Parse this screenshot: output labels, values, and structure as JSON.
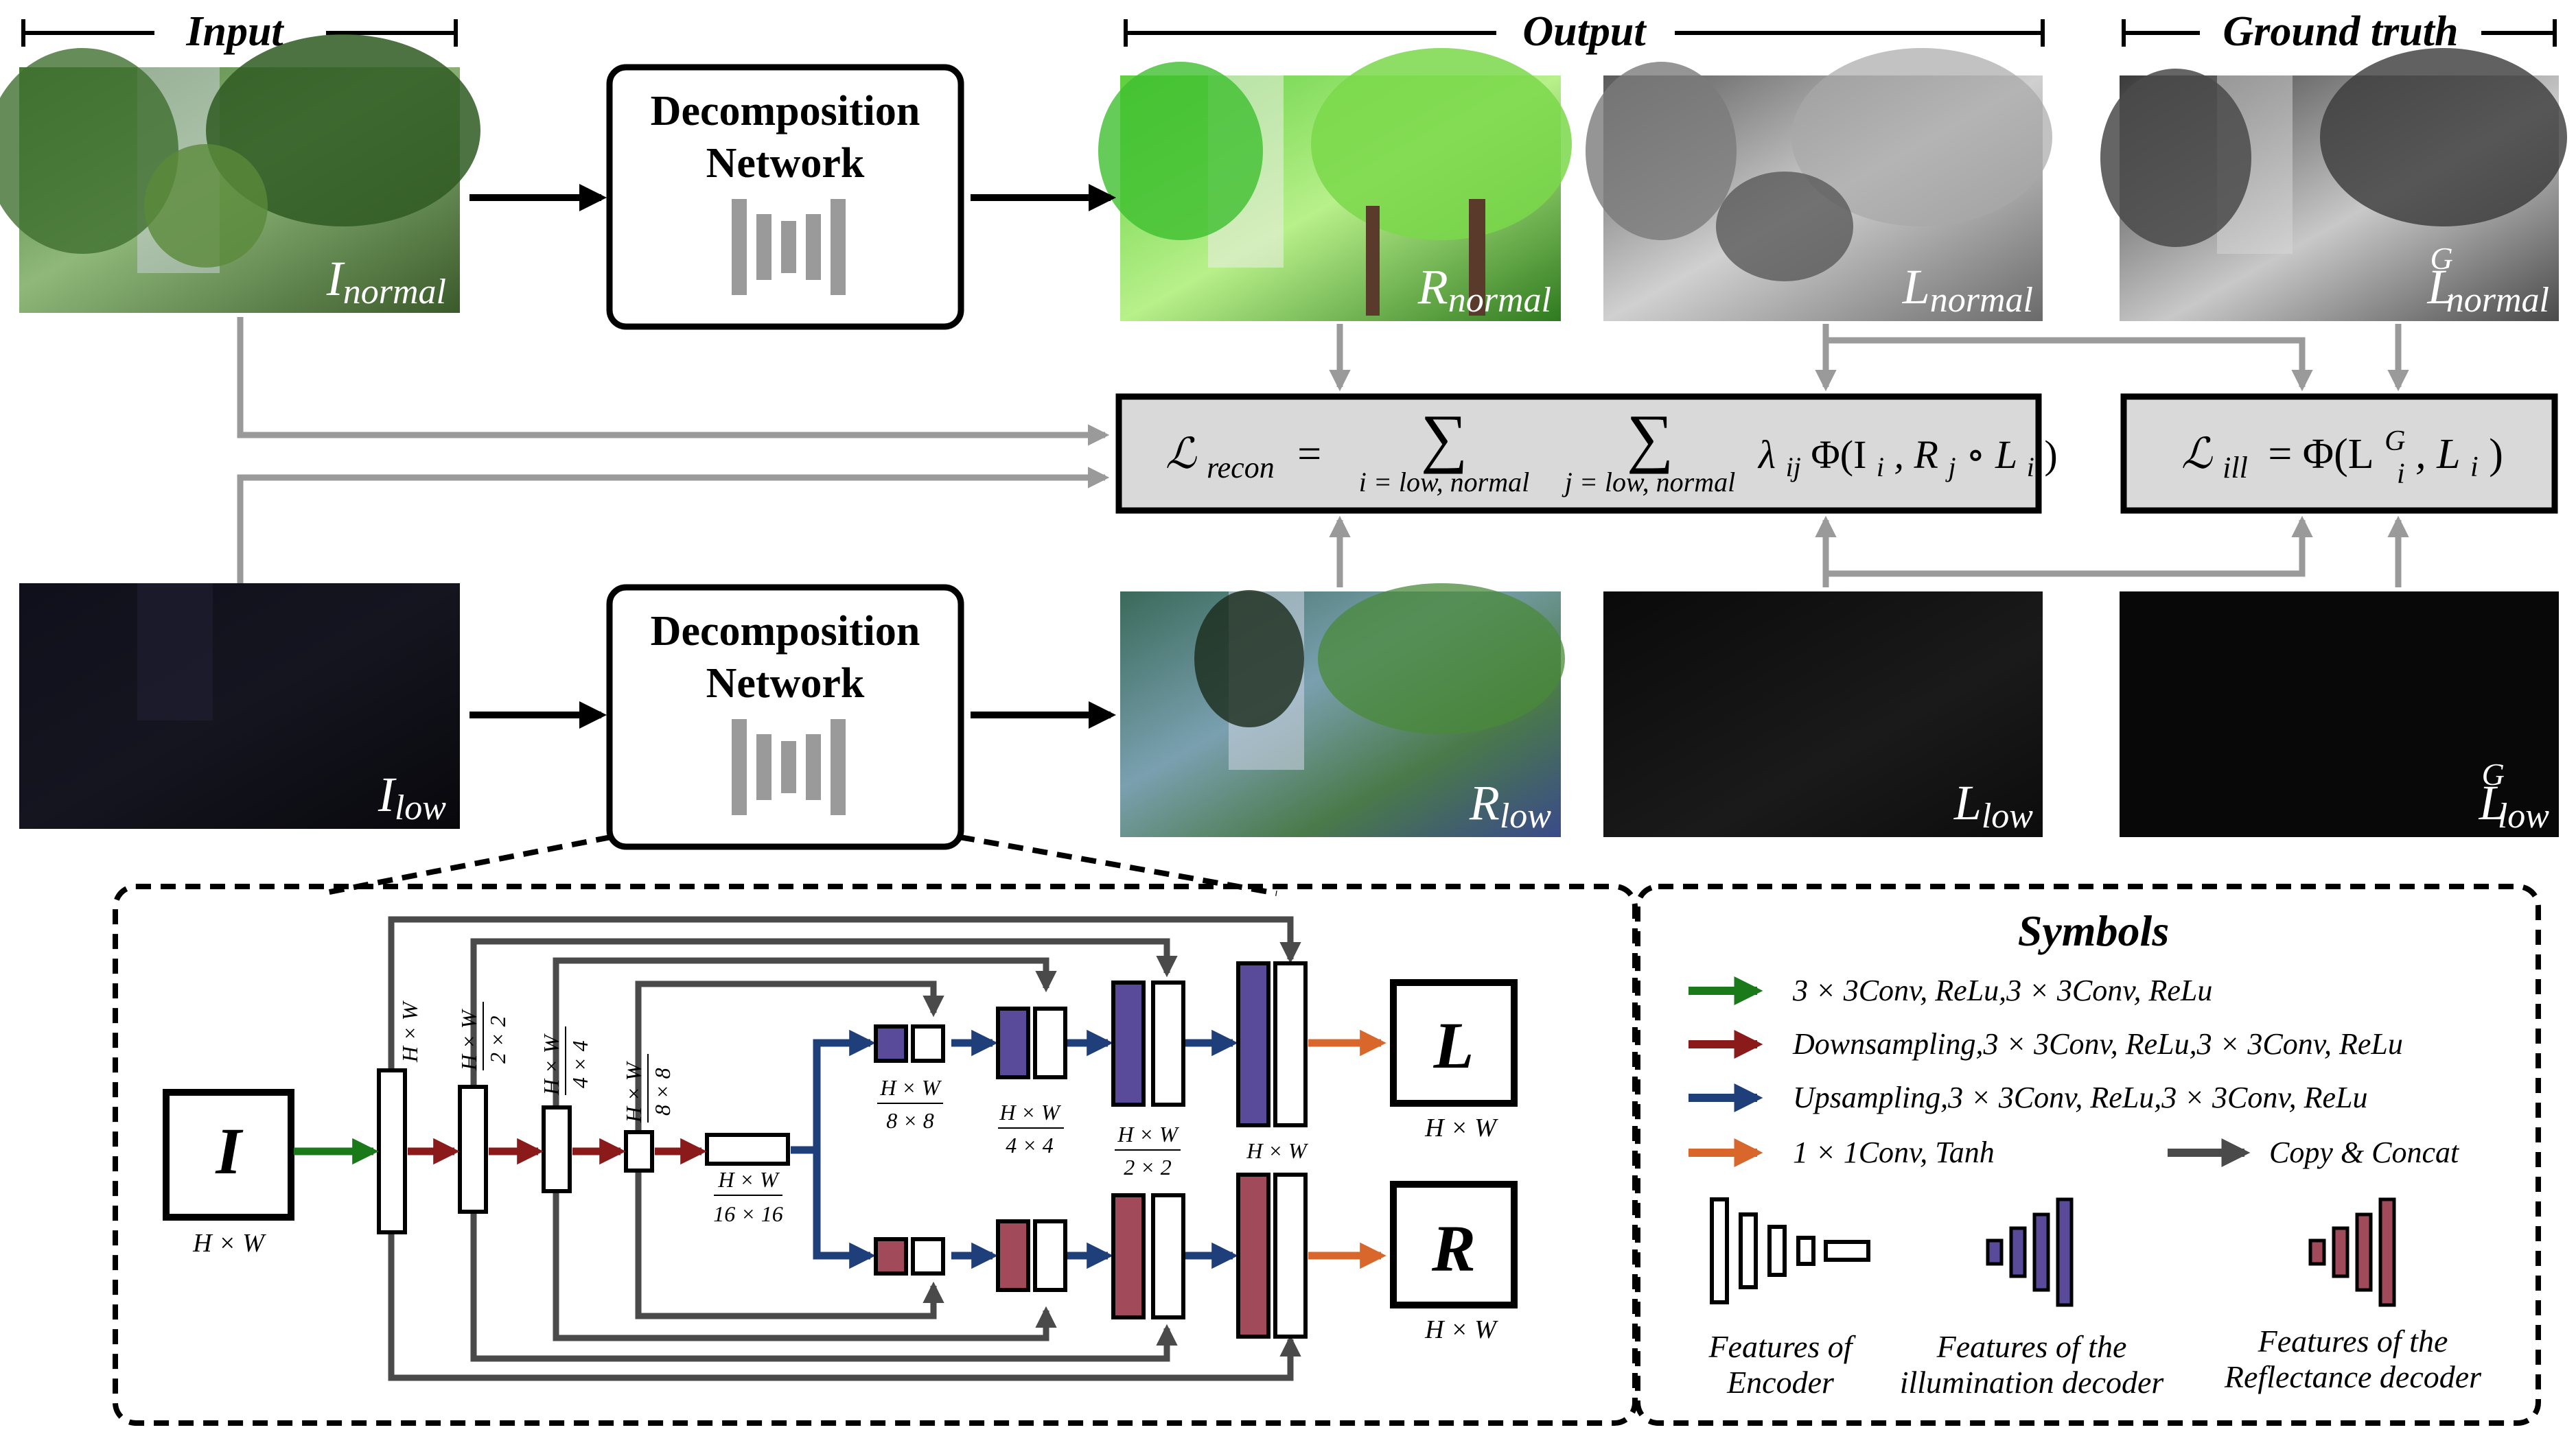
{
  "headers": {
    "input": "Input",
    "output": "Output",
    "ground_truth": "Ground truth"
  },
  "decomposition_network": {
    "line1": "Decomposition",
    "line2": "Network"
  },
  "images": {
    "i_normal": {
      "base": "I",
      "sub": "normal",
      "sup": ""
    },
    "r_normal": {
      "base": "R",
      "sub": "normal",
      "sup": ""
    },
    "l_normal": {
      "base": "L",
      "sub": "normal",
      "sup": ""
    },
    "lg_normal": {
      "base": "L",
      "sub": "normal",
      "sup": "G"
    },
    "i_low": {
      "base": "I",
      "sub": "low",
      "sup": ""
    },
    "r_low": {
      "base": "R",
      "sub": "low",
      "sup": ""
    },
    "l_low": {
      "base": "L",
      "sub": "low",
      "sup": ""
    },
    "lg_low": {
      "base": "L",
      "sub": "low",
      "sup": "G"
    }
  },
  "losses": {
    "recon": {
      "lhs": "ℒ",
      "lhs_sub": "recon",
      "eq": "=",
      "sum": "∑",
      "sum1_sub": "i = low, normal",
      "sum2_sub": "j = low, normal",
      "rhs": "λ",
      "rhs_sub": "ij",
      "rhs_rest": "Φ(I",
      "rhs_i": "i",
      "rhs_comma": ", R",
      "rhs_j": "j",
      "rhs_circ": " ∘ L",
      "rhs_i2": "i",
      "rhs_close": ")"
    },
    "ill": {
      "lhs": "ℒ",
      "lhs_sub": "ill",
      "eq": "= Φ(L",
      "sup": "G",
      "sub": "i",
      "mid": ", L",
      "sub2": "i",
      "close": ")"
    }
  },
  "network": {
    "input_label": "I",
    "input_size": "H × W",
    "output_l": "L",
    "output_r": "R",
    "output_size": "H × W",
    "encoder_sizes": [
      {
        "num": "H × W",
        "den": ""
      },
      {
        "num": "H × W",
        "den": "2 × 2"
      },
      {
        "num": "H × W",
        "den": "4 × 4"
      },
      {
        "num": "H × W",
        "den": "8 × 8"
      },
      {
        "num": "H × W",
        "den": "16 × 16"
      }
    ],
    "decoder_sizes": [
      {
        "num": "H × W",
        "den": "8 × 8"
      },
      {
        "num": "H × W",
        "den": "4 × 4"
      },
      {
        "num": "H × W",
        "den": "2 × 2"
      },
      {
        "num": "H × W",
        "den": ""
      }
    ]
  },
  "symbols": {
    "title": "Symbols",
    "items": [
      {
        "color": "#1a7a1a",
        "text": "3 × 3Conv, ReLu,3 × 3Conv, ReLu"
      },
      {
        "color": "#8b1a1a",
        "text": "Downsampling,3 × 3Conv, ReLu,3 × 3Conv, ReLu"
      },
      {
        "color": "#1f3f7a",
        "text": "Upsampling,3 × 3Conv, ReLu,3 × 3Conv, ReLu"
      },
      {
        "color": "#d9662a",
        "text": "1 × 1Conv, Tanh"
      }
    ],
    "copy_concat": "Copy & Concat",
    "features": [
      {
        "line1": "Features of",
        "line2": "Encoder"
      },
      {
        "line1": "Features of the",
        "line2": "illumination decoder"
      },
      {
        "line1": "Features of the",
        "line2": "Reflectance decoder"
      }
    ]
  },
  "colors": {
    "illumination": "#5a4a9a",
    "reflectance": "#a04a5a",
    "gray_arrow": "#9a9a9a",
    "skip": "#4a4a4a",
    "loss_box": "#d9d9d9"
  }
}
